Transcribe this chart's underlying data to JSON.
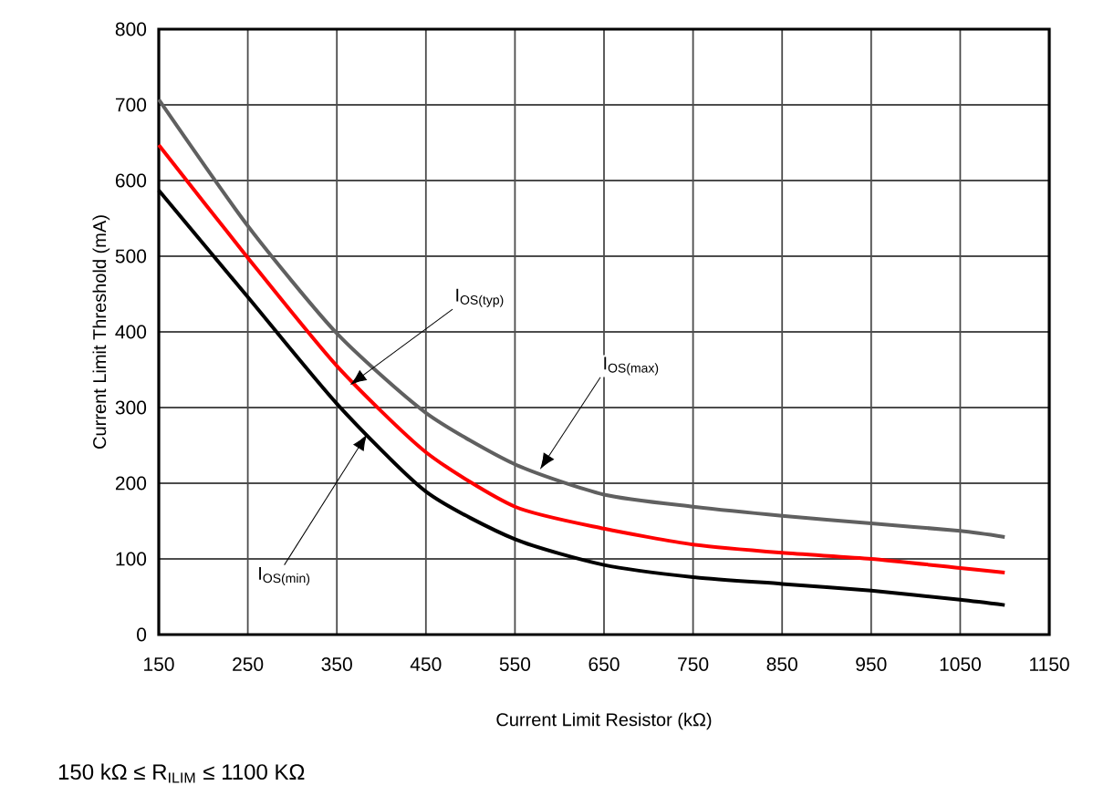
{
  "chart_data": {
    "type": "line",
    "xlabel": "Current Limit Resistor (kΩ)",
    "ylabel": "Current Limit Threshold (mA)",
    "x": [
      150,
      250,
      350,
      450,
      550,
      650,
      750,
      850,
      950,
      1050,
      1100
    ],
    "series": [
      {
        "color": "#606060",
        "values": [
          707,
          540,
          398,
          293,
          225,
          185,
          169,
          157,
          147,
          137,
          129
        ]
      },
      {
        "color": "#ff0000",
        "values": [
          647,
          498,
          355,
          241,
          169,
          140,
          119,
          108,
          100,
          88,
          82
        ]
      },
      {
        "color": "#000000",
        "values": [
          587,
          446,
          305,
          189,
          126,
          92,
          76,
          67,
          58,
          46,
          39
        ]
      }
    ],
    "xlim": [
      150,
      1150
    ],
    "ylim": [
      0,
      800
    ],
    "xticks": [
      150,
      250,
      350,
      450,
      550,
      650,
      750,
      850,
      950,
      1050,
      1150
    ],
    "yticks": [
      0,
      100,
      200,
      300,
      400,
      500,
      600,
      700,
      800
    ],
    "grid": true,
    "marker": "none",
    "line_style": "solid",
    "annotations": [
      {
        "text": "I$_{OS(typ)}$",
        "x": 365,
        "y": 330
      },
      {
        "text": "I$_{OS(max)}$",
        "x": 578,
        "y": 218
      },
      {
        "text": "I$_{OS(min)}$",
        "x": 384,
        "y": 265
      },
      "150 kΩ ≤ R$_{ILIM}$ ≤ 1100 KΩ"
    ]
  }
}
